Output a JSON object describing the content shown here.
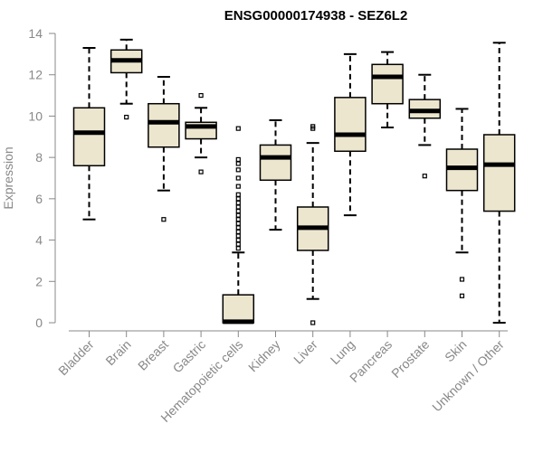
{
  "colors": {
    "box_fill": "#EDE6CF",
    "box_stroke": "#000000",
    "axis": "#888888",
    "text_muted": "#888888"
  },
  "chart_data": {
    "type": "boxplot",
    "title": "ENSG00000174938 - SEZ6L2",
    "ylabel": "Expression",
    "xlabel": "",
    "ylim": [
      0,
      14
    ],
    "yticks": [
      0,
      2,
      4,
      6,
      8,
      10,
      12,
      14
    ],
    "categories": [
      "Bladder",
      "Brain",
      "Breast",
      "Gastric",
      "Hematopoietic cells",
      "Kidney",
      "Liver",
      "Lung",
      "Pancreas",
      "Prostate",
      "Skin",
      "Unknown / Other"
    ],
    "boxes": [
      {
        "whisker_low": 5.0,
        "q1": 7.6,
        "median": 9.2,
        "q3": 10.4,
        "whisker_high": 13.3,
        "outliers": []
      },
      {
        "whisker_low": 10.6,
        "q1": 12.1,
        "median": 12.7,
        "q3": 13.2,
        "whisker_high": 13.7,
        "outliers": [
          9.95
        ]
      },
      {
        "whisker_low": 6.4,
        "q1": 8.5,
        "median": 9.7,
        "q3": 10.6,
        "whisker_high": 11.9,
        "outliers": [
          5.0
        ]
      },
      {
        "whisker_low": 8.0,
        "q1": 8.9,
        "median": 9.5,
        "q3": 9.7,
        "whisker_high": 10.4,
        "outliers": [
          11.0,
          7.3
        ]
      },
      {
        "whisker_low": 0.0,
        "q1": 0.0,
        "median": 0.05,
        "q3": 1.35,
        "whisker_high": 3.4,
        "outliers": [
          3.6,
          3.8,
          4.0,
          4.2,
          4.4,
          4.6,
          4.8,
          5.0,
          5.2,
          5.4,
          5.6,
          5.8,
          6.0,
          6.2,
          6.6,
          7.0,
          7.4,
          7.7,
          7.9,
          9.4
        ]
      },
      {
        "whisker_low": 4.5,
        "q1": 6.9,
        "median": 8.0,
        "q3": 8.6,
        "whisker_high": 9.8,
        "outliers": []
      },
      {
        "whisker_low": 1.15,
        "q1": 3.5,
        "median": 4.6,
        "q3": 5.6,
        "whisker_high": 8.7,
        "outliers": [
          9.4,
          9.5,
          0.0
        ]
      },
      {
        "whisker_low": 5.2,
        "q1": 8.3,
        "median": 9.1,
        "q3": 10.9,
        "whisker_high": 13.0,
        "outliers": []
      },
      {
        "whisker_low": 9.45,
        "q1": 10.6,
        "median": 11.9,
        "q3": 12.5,
        "whisker_high": 13.1,
        "outliers": []
      },
      {
        "whisker_low": 8.6,
        "q1": 9.9,
        "median": 10.25,
        "q3": 10.8,
        "whisker_high": 12.0,
        "outliers": [
          7.1
        ]
      },
      {
        "whisker_low": 3.4,
        "q1": 6.4,
        "median": 7.5,
        "q3": 8.4,
        "whisker_high": 10.35,
        "outliers": [
          2.1,
          1.3
        ]
      },
      {
        "whisker_low": 0.0,
        "q1": 5.4,
        "median": 7.65,
        "q3": 9.1,
        "whisker_high": 13.55,
        "outliers": []
      }
    ]
  }
}
